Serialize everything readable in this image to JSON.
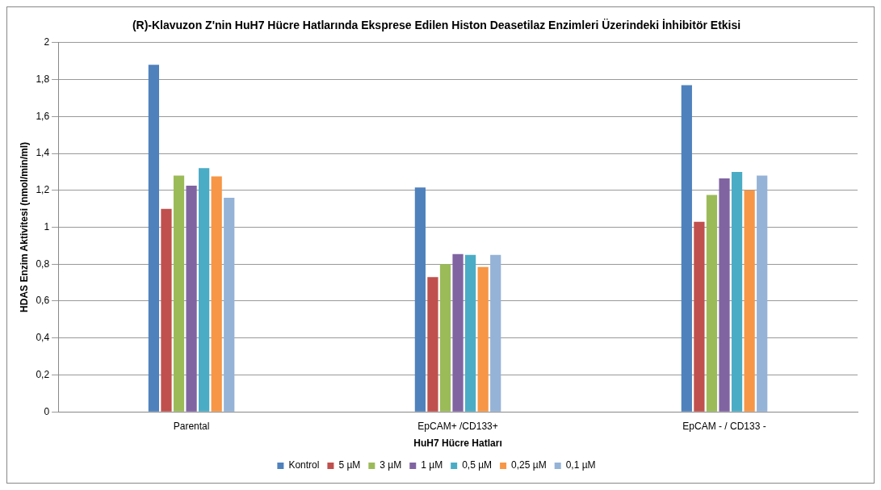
{
  "chart_data": {
    "type": "bar",
    "title": "(R)-Klavuzon Z'nin HuH7 Hücre Hatlarında Eksprese Edilen Histon Deasetilaz Enzimleri Üzerindeki İnhibitör Etkisi",
    "xlabel": "HuH7 Hücre Hatları",
    "ylabel": "HDAS Enzim Aktivitesi (nmol/min/ml)",
    "categories": [
      "Parental",
      "EpCAM+ /CD133+",
      "EpCAM - / CD133 -"
    ],
    "series": [
      {
        "name": "Kontrol",
        "color": "#4f81bd",
        "values": [
          1.88,
          1.215,
          1.77
        ]
      },
      {
        "name": "5 µM",
        "color": "#c0504d",
        "values": [
          1.1,
          0.73,
          1.03
        ]
      },
      {
        "name": "3 µM",
        "color": "#9bbb59",
        "values": [
          1.28,
          0.8,
          1.175
        ]
      },
      {
        "name": "1 µM",
        "color": "#8064a2",
        "values": [
          1.225,
          0.855,
          1.265
        ]
      },
      {
        "name": "0,5 µM",
        "color": "#4bacc6",
        "values": [
          1.32,
          0.85,
          1.3
        ]
      },
      {
        "name": "0,25 µM",
        "color": "#f79646",
        "values": [
          1.275,
          0.785,
          1.2
        ]
      },
      {
        "name": "0,1 µM",
        "color": "#95b3d7",
        "values": [
          1.16,
          0.85,
          1.28
        ]
      }
    ],
    "ylim": [
      0,
      2
    ],
    "yticks": [
      0,
      {
        "value": 0.2,
        "label": "0,2"
      },
      {
        "value": 0.4,
        "label": "0,4"
      },
      {
        "value": 0.6,
        "label": "0,6"
      },
      {
        "value": 0.8,
        "label": "0,8"
      },
      1,
      {
        "value": 1.2,
        "label": "1,2"
      },
      {
        "value": 1.4,
        "label": "1,4"
      },
      {
        "value": 1.6,
        "label": "1,6"
      },
      {
        "value": 1.8,
        "label": "1,8"
      },
      2
    ],
    "grid": "y",
    "legend": "bottom"
  }
}
